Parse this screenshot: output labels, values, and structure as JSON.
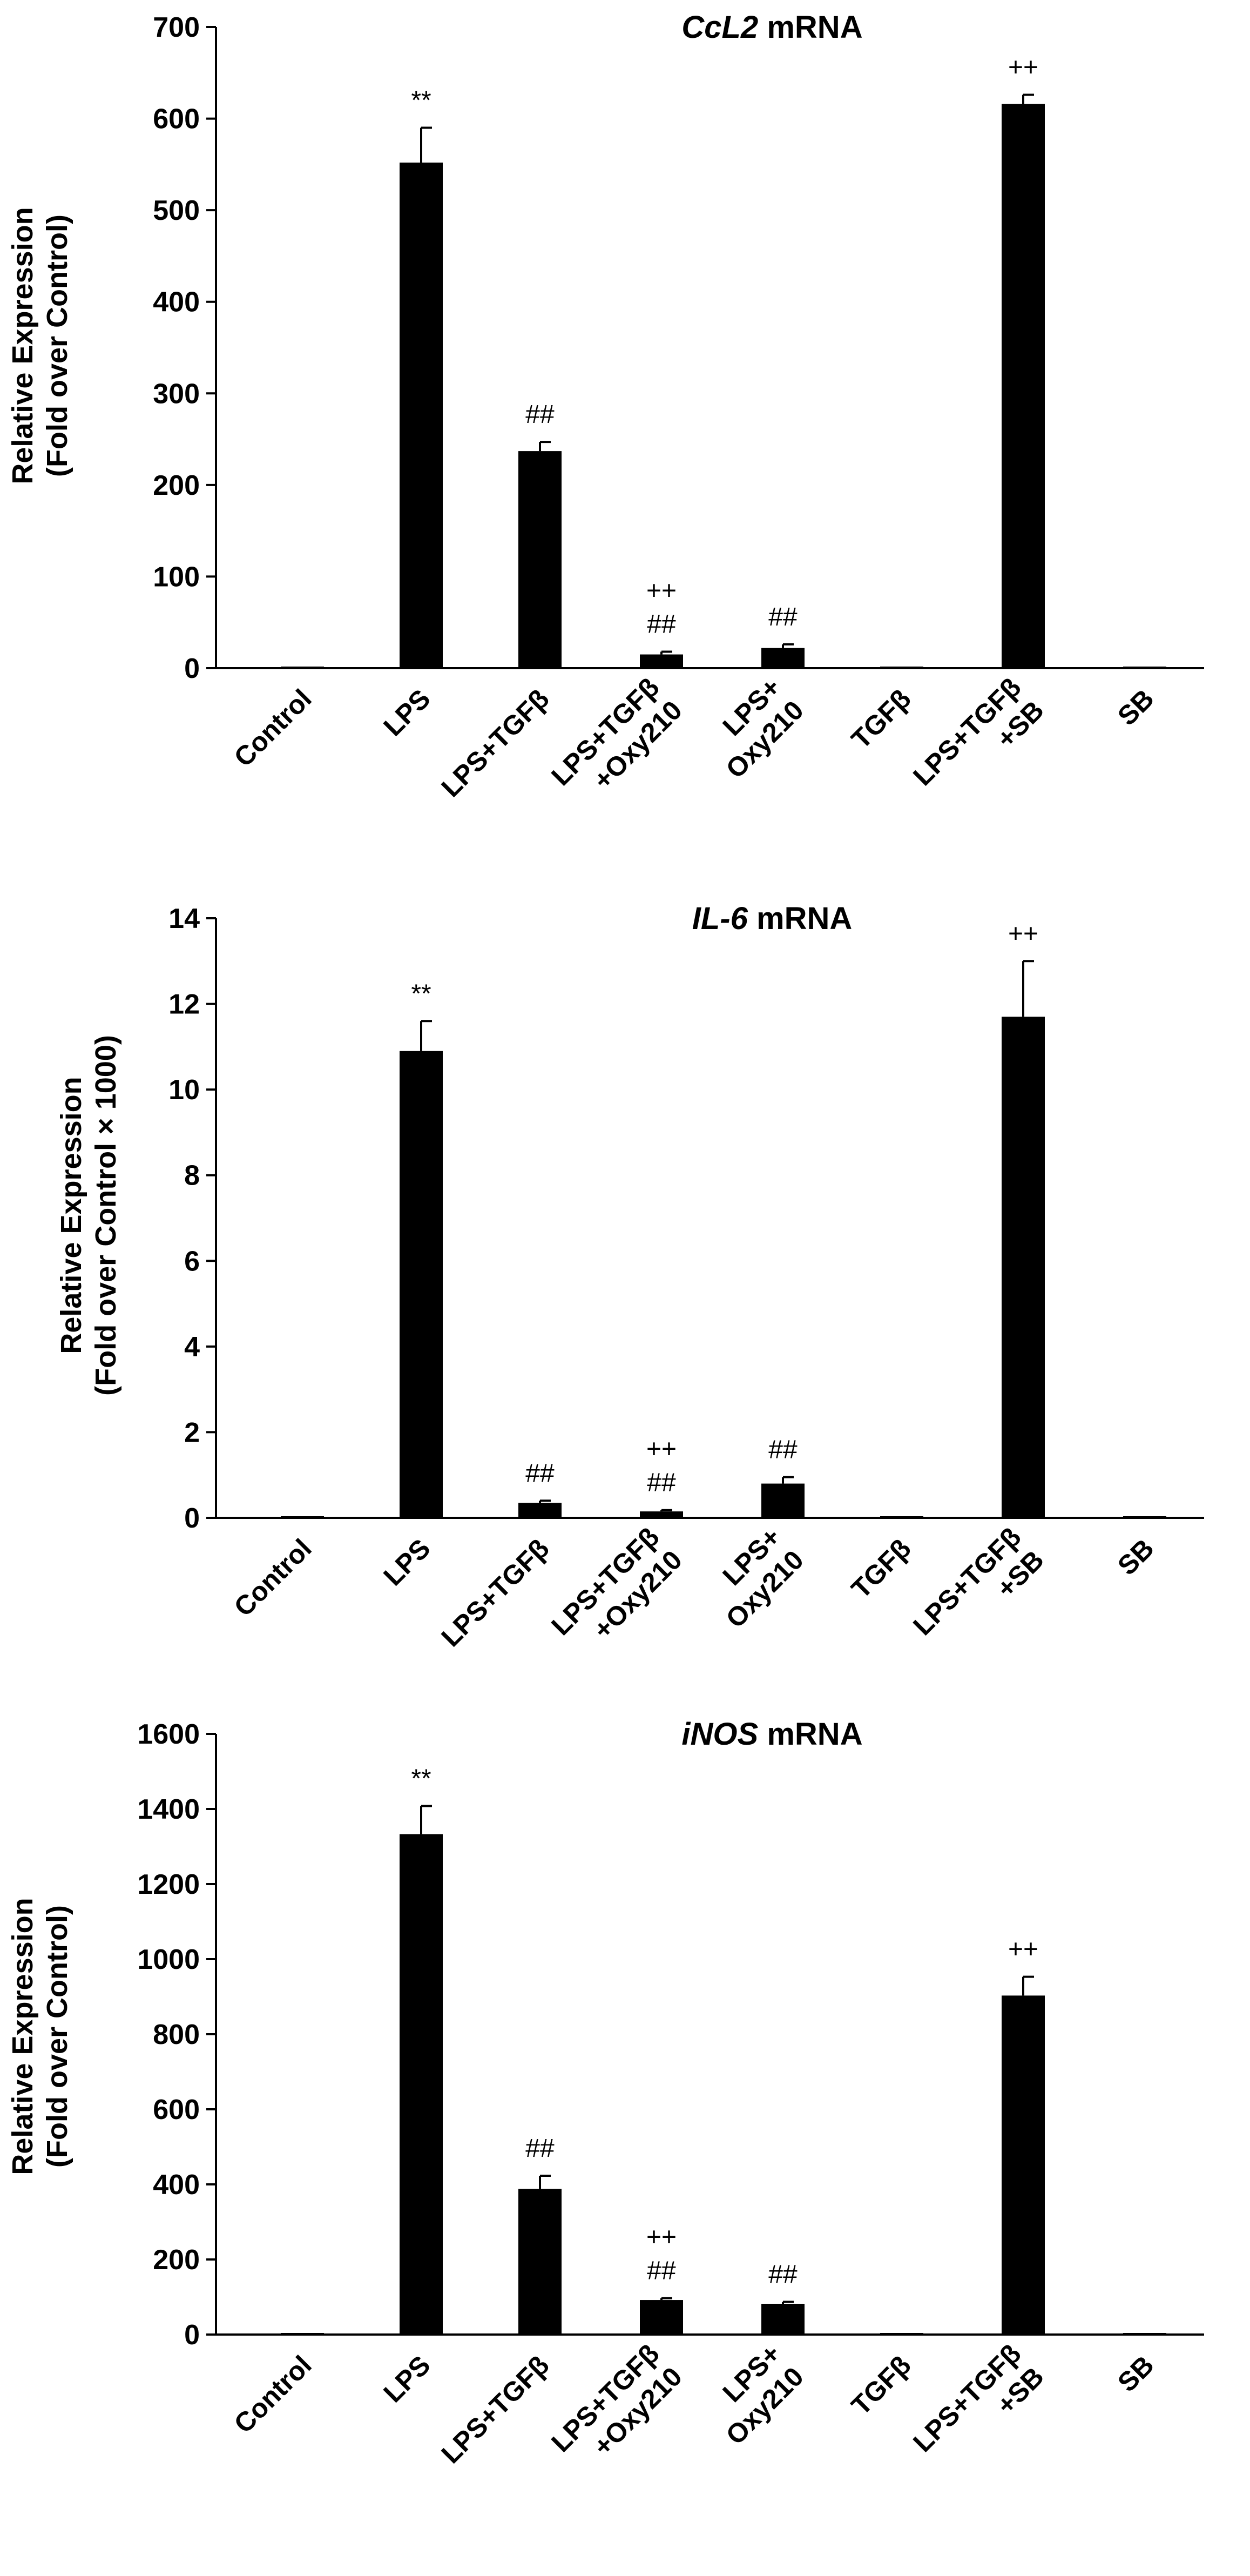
{
  "chart_data": [
    {
      "type": "bar",
      "title_gene": "CcL2",
      "title_rest": " mRNA",
      "ylabel": [
        "Relative Expression",
        "(Fold over Control)"
      ],
      "ylim": [
        0,
        700
      ],
      "yticks": [
        0,
        100,
        200,
        300,
        400,
        500,
        600,
        700
      ],
      "categories": [
        [
          "Control"
        ],
        [
          "LPS"
        ],
        [
          "LPS+TGFβ"
        ],
        [
          "LPS+TGFβ",
          "+Oxy210"
        ],
        [
          "LPS+",
          "Oxy210"
        ],
        [
          "TGFβ"
        ],
        [
          "LPS+TGFβ",
          "+SB"
        ],
        [
          "SB"
        ]
      ],
      "values": [
        1,
        552,
        237,
        15,
        22,
        1,
        616,
        1
      ],
      "errors": [
        0,
        38,
        10,
        3,
        4,
        0,
        10,
        0
      ],
      "annotations": [
        [],
        [
          "**"
        ],
        [
          "##"
        ],
        [
          "++",
          "##"
        ],
        [
          "##"
        ],
        [],
        [
          "++"
        ],
        []
      ]
    },
    {
      "type": "bar",
      "title_gene": "IL-6",
      "title_rest": " mRNA",
      "ylabel": [
        "Relative Expression",
        "(Fold over Control × 1000)"
      ],
      "ylim": [
        0,
        14
      ],
      "yticks": [
        0,
        2,
        4,
        6,
        8,
        10,
        12,
        14
      ],
      "categories": [
        [
          "Control"
        ],
        [
          "LPS"
        ],
        [
          "LPS+TGFβ"
        ],
        [
          "LPS+TGFβ",
          "+Oxy210"
        ],
        [
          "LPS+",
          "Oxy210"
        ],
        [
          "TGFβ"
        ],
        [
          "LPS+TGFβ",
          "+SB"
        ],
        [
          "SB"
        ]
      ],
      "values": [
        0.02,
        10.9,
        0.35,
        0.15,
        0.8,
        0.02,
        11.7,
        0.02
      ],
      "errors": [
        0,
        0.7,
        0.05,
        0.03,
        0.15,
        0,
        1.3,
        0
      ],
      "annotations": [
        [],
        [
          "**"
        ],
        [
          "##"
        ],
        [
          "++",
          "##"
        ],
        [
          "##"
        ],
        [],
        [
          "++"
        ],
        []
      ]
    },
    {
      "type": "bar",
      "title_gene": "iNOS",
      "title_rest": " mRNA",
      "ylabel": [
        "Relative Expression",
        "(Fold over Control)"
      ],
      "ylim": [
        0,
        1600
      ],
      "yticks": [
        0,
        200,
        400,
        600,
        800,
        1000,
        1200,
        1400,
        1600
      ],
      "categories": [
        [
          "Control"
        ],
        [
          "LPS"
        ],
        [
          "LPS+TGFβ"
        ],
        [
          "LPS+TGFβ",
          "+Oxy210"
        ],
        [
          "LPS+",
          "Oxy210"
        ],
        [
          "TGFβ"
        ],
        [
          "LPS+TGFβ",
          "+SB"
        ],
        [
          "SB"
        ]
      ],
      "values": [
        1,
        1333,
        388,
        92,
        82,
        1,
        903,
        1
      ],
      "errors": [
        0,
        75,
        35,
        5,
        5,
        0,
        50,
        0
      ],
      "annotations": [
        [],
        [
          "**"
        ],
        [
          "##"
        ],
        [
          "++",
          "##"
        ],
        [
          "##"
        ],
        [],
        [
          "++"
        ],
        []
      ]
    }
  ]
}
